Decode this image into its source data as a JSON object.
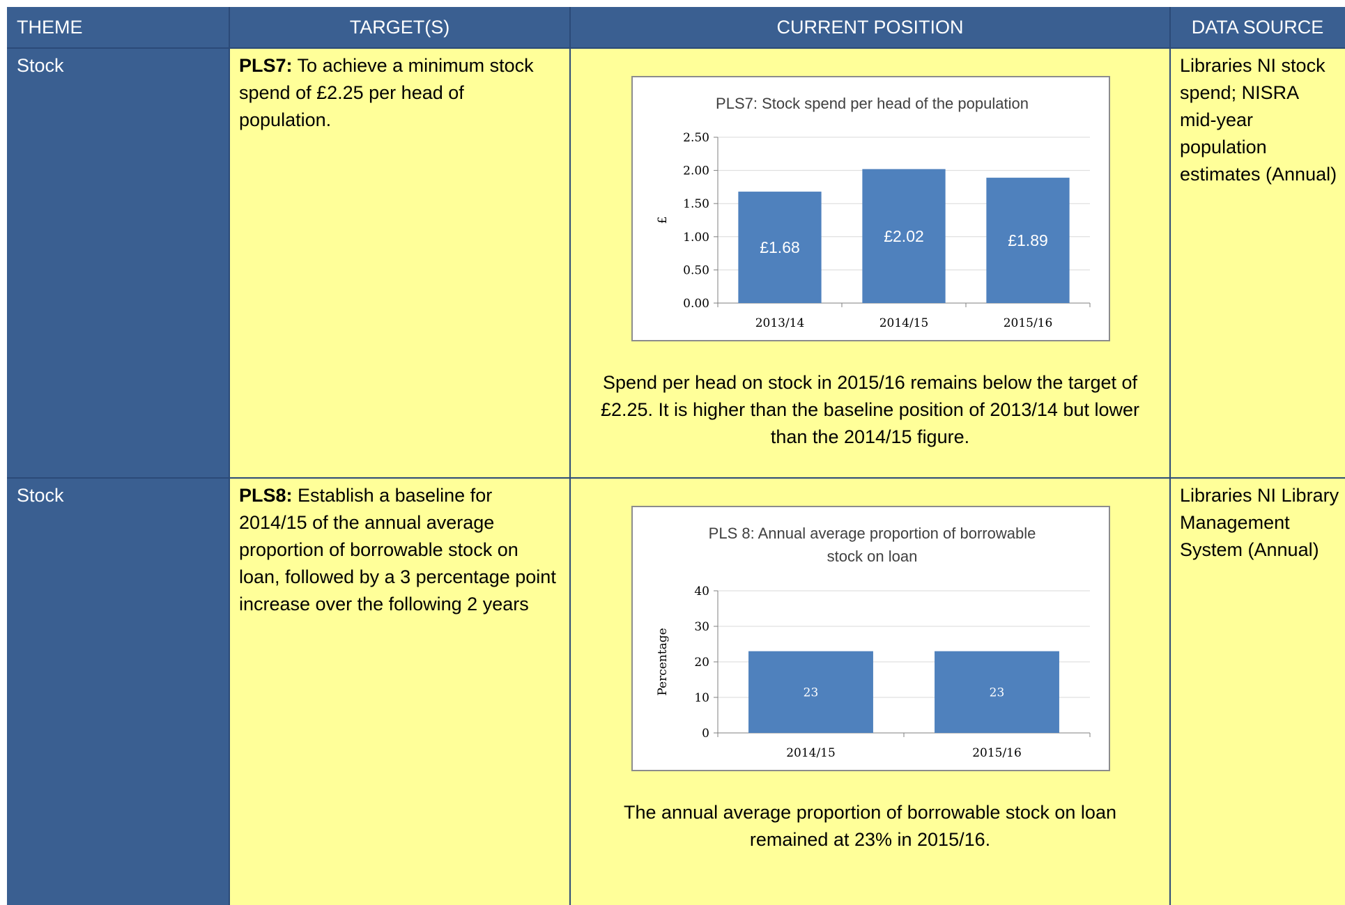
{
  "headers": {
    "theme": "THEME",
    "targets": "TARGET(S)",
    "current": "CURRENT POSITION",
    "source": "DATA SOURCE"
  },
  "rows": [
    {
      "theme": "Stock",
      "target_code": "PLS7:",
      "target_text": " To achieve a minimum stock spend of £2.25 per head of population.",
      "source": "Libraries NI stock spend; NISRA mid-year population estimates (Annual)",
      "caption": "Spend per head on stock in 2015/16 remains below the target of £2.25.  It is higher than the baseline position of 2013/14 but lower than the 2014/15 figure."
    },
    {
      "theme": "Stock",
      "target_code": "PLS8:",
      "target_text": " Establish a baseline for 2014/15 of the annual average proportion of borrowable stock on loan, followed by a 3 percentage point increase over the following 2 years",
      "source": "Libraries NI Library Management System (Annual)",
      "caption": "The annual average proportion of borrowable stock on loan remained at 23% in 2015/16."
    }
  ],
  "colors": {
    "header_bg": "#3a5f91",
    "cell_bg": "#ffff99",
    "bar": "#4f81bd"
  },
  "chart_data": [
    {
      "type": "bar",
      "title": "PLS7: Stock spend per head of the population",
      "ylabel": "£",
      "xlabel": "",
      "categories": [
        "2013/14",
        "2014/15",
        "2015/16"
      ],
      "values": [
        1.68,
        2.02,
        1.89
      ],
      "data_labels": [
        "£1.68",
        "£2.02",
        "£1.89"
      ],
      "yticks": [
        "0.00",
        "0.50",
        "1.00",
        "1.50",
        "2.00",
        "2.50"
      ],
      "ylim": [
        0,
        2.5
      ],
      "grid": true
    },
    {
      "type": "bar",
      "title": "PLS 8: Annual average proportion of borrowable stock on loan",
      "ylabel": "Percentage",
      "xlabel": "",
      "categories": [
        "2014/15",
        "2015/16"
      ],
      "values": [
        23,
        23
      ],
      "data_labels": [
        "23",
        "23"
      ],
      "yticks": [
        "0",
        "10",
        "20",
        "30",
        "40"
      ],
      "ylim": [
        0,
        40
      ],
      "grid": true
    }
  ]
}
